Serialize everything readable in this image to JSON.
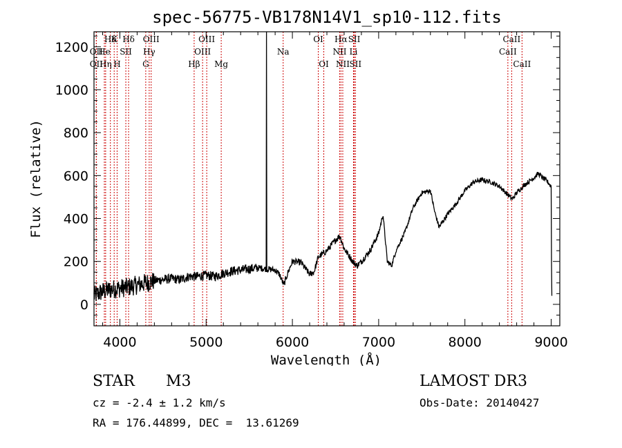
{
  "chart_data": {
    "type": "line",
    "title": "spec-56775-VB178N14V1_sp10-112.fits",
    "xlabel": "Wavelength (Å)",
    "ylabel": "Flux (relative)",
    "xlim": [
      3700,
      9100
    ],
    "ylim": [
      -100,
      1270
    ],
    "xticks": [
      4000,
      5000,
      6000,
      7000,
      8000,
      9000
    ],
    "yticks": [
      0,
      200,
      400,
      600,
      800,
      1000,
      1200
    ],
    "spectrum_anchors": [
      [
        3700,
        40
      ],
      [
        3800,
        60
      ],
      [
        3900,
        70
      ],
      [
        4000,
        75
      ],
      [
        4100,
        80
      ],
      [
        4200,
        90
      ],
      [
        4300,
        100
      ],
      [
        4400,
        110
      ],
      [
        4500,
        115
      ],
      [
        4600,
        120
      ],
      [
        4700,
        115
      ],
      [
        4800,
        130
      ],
      [
        4900,
        130
      ],
      [
        5000,
        135
      ],
      [
        5100,
        130
      ],
      [
        5200,
        145
      ],
      [
        5300,
        155
      ],
      [
        5400,
        160
      ],
      [
        5500,
        165
      ],
      [
        5600,
        170
      ],
      [
        5700,
        165
      ],
      [
        5800,
        160
      ],
      [
        5850,
        140
      ],
      [
        5900,
        90
      ],
      [
        5950,
        150
      ],
      [
        6000,
        200
      ],
      [
        6100,
        195
      ],
      [
        6200,
        140
      ],
      [
        6250,
        150
      ],
      [
        6300,
        220
      ],
      [
        6400,
        250
      ],
      [
        6500,
        300
      ],
      [
        6550,
        320
      ],
      [
        6600,
        260
      ],
      [
        6700,
        200
      ],
      [
        6750,
        180
      ],
      [
        6800,
        200
      ],
      [
        6900,
        250
      ],
      [
        7000,
        330
      ],
      [
        7050,
        420
      ],
      [
        7100,
        200
      ],
      [
        7150,
        180
      ],
      [
        7200,
        250
      ],
      [
        7300,
        330
      ],
      [
        7400,
        450
      ],
      [
        7500,
        520
      ],
      [
        7600,
        530
      ],
      [
        7650,
        430
      ],
      [
        7700,
        360
      ],
      [
        7800,
        420
      ],
      [
        7900,
        470
      ],
      [
        8000,
        530
      ],
      [
        8100,
        570
      ],
      [
        8200,
        580
      ],
      [
        8300,
        570
      ],
      [
        8400,
        550
      ],
      [
        8500,
        510
      ],
      [
        8550,
        490
      ],
      [
        8600,
        520
      ],
      [
        8700,
        560
      ],
      [
        8800,
        590
      ],
      [
        8850,
        610
      ],
      [
        8900,
        590
      ],
      [
        8950,
        575
      ],
      [
        9000,
        550
      ],
      [
        9005,
        100
      ],
      [
        9010,
        0
      ]
    ],
    "spike": {
      "x": 5700,
      "peak": 1270
    },
    "emission_lines": [
      {
        "label": "Hδ",
        "x": 4101,
        "row": 0
      },
      {
        "label": "K",
        "x": 3934,
        "row": 0
      },
      {
        "label": "Hδ",
        "x": 3890,
        "row": 0
      },
      {
        "label": "OIII",
        "x": 4363,
        "row": 0
      },
      {
        "label": "OIII",
        "x": 5007,
        "row": 0
      },
      {
        "label": "OI",
        "x": 6300,
        "row": 0
      },
      {
        "label": "Hα",
        "x": 6563,
        "row": 0
      },
      {
        "label": "SII",
        "x": 6717,
        "row": 0
      },
      {
        "label": "CaII",
        "x": 8542,
        "row": 0
      },
      {
        "label": "OII",
        "x": 3727,
        "row": 1
      },
      {
        "label": "He",
        "x": 3820,
        "row": 1
      },
      {
        "label": "SII",
        "x": 4069,
        "row": 1
      },
      {
        "label": "Hγ",
        "x": 4340,
        "row": 1
      },
      {
        "label": "OIII",
        "x": 4959,
        "row": 1
      },
      {
        "label": "Na",
        "x": 5893,
        "row": 1
      },
      {
        "label": "NII",
        "x": 6548,
        "row": 1
      },
      {
        "label": "Li",
        "x": 6708,
        "row": 1
      },
      {
        "label": "CaII",
        "x": 8498,
        "row": 1
      },
      {
        "label": "OII",
        "x": 3727,
        "row": 2
      },
      {
        "label": "Hη",
        "x": 3835,
        "row": 2
      },
      {
        "label": "H",
        "x": 3968,
        "row": 2
      },
      {
        "label": "G",
        "x": 4300,
        "row": 2
      },
      {
        "label": "Hβ",
        "x": 4861,
        "row": 2
      },
      {
        "label": "Mg",
        "x": 5175,
        "row": 2
      },
      {
        "label": "OI",
        "x": 6364,
        "row": 2
      },
      {
        "label": "NII",
        "x": 6584,
        "row": 2
      },
      {
        "label": "SII",
        "x": 6731,
        "row": 2
      },
      {
        "label": "CaII",
        "x": 8662,
        "row": 2
      }
    ],
    "line_color": "#cc0000"
  },
  "info": {
    "object_class": "STAR",
    "subclass": "M3",
    "survey": "LAMOST DR3",
    "cz": "cz = -2.4 ± 1.2 km/s",
    "obs_date": "Obs-Date: 20140427",
    "coords": "RA = 176.44899, DEC =  13.61269"
  }
}
